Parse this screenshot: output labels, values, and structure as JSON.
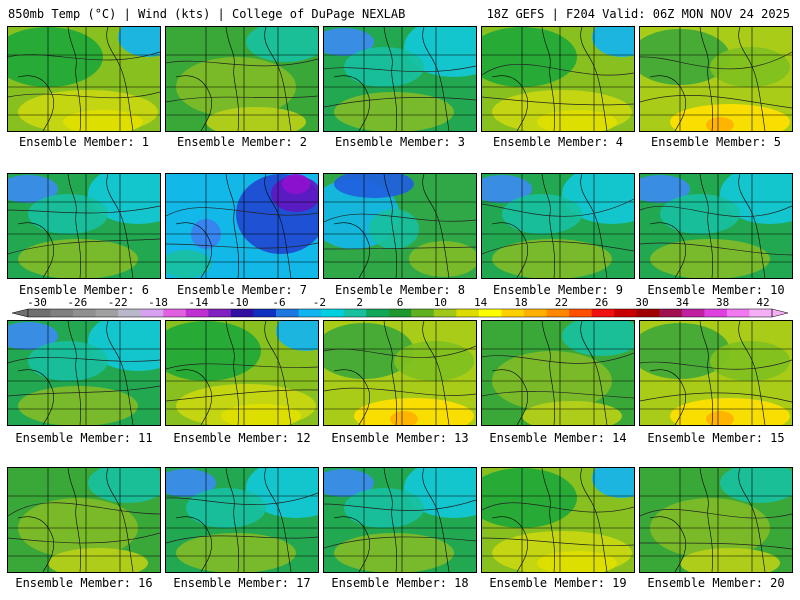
{
  "header": {
    "left": "850mb Temp (°C) | Wind (kts) | College of DuPage NEXLAB",
    "right": "18Z GEFS | F204 Valid: 06Z MON NOV 24 2025"
  },
  "members": [
    {
      "label": "Ensemble Member: 1",
      "theme": "warm"
    },
    {
      "label": "Ensemble Member: 2",
      "theme": "mild"
    },
    {
      "label": "Ensemble Member: 3",
      "theme": "cool"
    },
    {
      "label": "Ensemble Member: 4",
      "theme": "warm"
    },
    {
      "label": "Ensemble Member: 5",
      "theme": "hot"
    },
    {
      "label": "Ensemble Member: 6",
      "theme": "cool"
    },
    {
      "label": "Ensemble Member: 7",
      "theme": "cold"
    },
    {
      "label": "Ensemble Member: 8",
      "theme": "cold2"
    },
    {
      "label": "Ensemble Member: 9",
      "theme": "cool"
    },
    {
      "label": "Ensemble Member: 10",
      "theme": "cool"
    },
    {
      "label": "Ensemble Member: 11",
      "theme": "cool"
    },
    {
      "label": "Ensemble Member: 12",
      "theme": "warm"
    },
    {
      "label": "Ensemble Member: 13",
      "theme": "hot"
    },
    {
      "label": "Ensemble Member: 14",
      "theme": "mild"
    },
    {
      "label": "Ensemble Member: 15",
      "theme": "hot"
    },
    {
      "label": "Ensemble Member: 16",
      "theme": "mild"
    },
    {
      "label": "Ensemble Member: 17",
      "theme": "cool"
    },
    {
      "label": "Ensemble Member: 18",
      "theme": "cool"
    },
    {
      "label": "Ensemble Member: 19",
      "theme": "warm"
    },
    {
      "label": "Ensemble Member: 20",
      "theme": "mild"
    }
  ],
  "colorbar": {
    "labels": [
      "-30",
      "-26",
      "-22",
      "-18",
      "-14",
      "-10",
      "-6",
      "-2",
      "2",
      "6",
      "10",
      "14",
      "18",
      "22",
      "26",
      "30",
      "34",
      "38",
      "42"
    ],
    "colors": [
      "#707070",
      "#808080",
      "#909090",
      "#a0a0a0",
      "#b8b8c8",
      "#d8a0f0",
      "#e060e0",
      "#c030d0",
      "#8020c0",
      "#3010a0",
      "#1030c0",
      "#1c78e0",
      "#12b4f0",
      "#00d0e0",
      "#18c0a0",
      "#10a858",
      "#209830",
      "#60b020",
      "#a0c818",
      "#dcdc00",
      "#ffff00",
      "#ffd000",
      "#ffb000",
      "#ff8800",
      "#ff5000",
      "#f01010",
      "#c80000",
      "#a00000",
      "#a01050",
      "#c020a0",
      "#e040e0",
      "#f078f0",
      "#f4b0f4"
    ]
  }
}
